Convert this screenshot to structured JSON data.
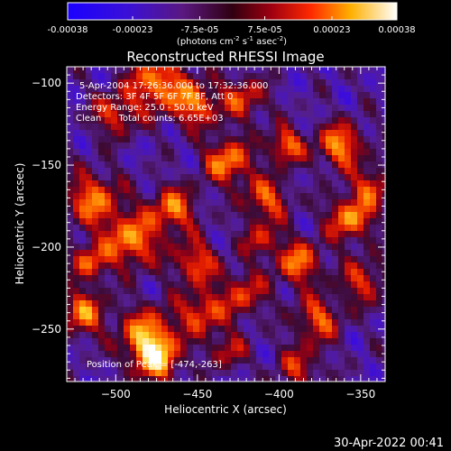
{
  "footer_timestamp": "30-Apr-2022 00:41",
  "chart_data": {
    "type": "heatmap",
    "title": "Reconstructed RHESSI Image",
    "xlabel": "Heliocentric X (arcsec)",
    "ylabel": "Heliocentric Y (arcsec)",
    "xlim": [
      -530,
      -335
    ],
    "ylim": [
      -282,
      -90
    ],
    "x_ticks": [
      -500,
      -450,
      -400,
      -350
    ],
    "y_ticks": [
      -100,
      -150,
      -200,
      -250
    ],
    "colorbar": {
      "min": -0.00038,
      "max": 0.00038,
      "ticks": [
        {
          "value": -0.00038,
          "label": "-0.00038"
        },
        {
          "value": -0.00023,
          "label": "-0.00023"
        },
        {
          "value": -7.5e-05,
          "label": "-7.5e-05"
        },
        {
          "value": 7.5e-05,
          "label": "7.5e-05"
        },
        {
          "value": 0.00023,
          "label": "0.00023"
        },
        {
          "value": 0.00038,
          "label": "0.00038"
        }
      ],
      "unit_prefix": "(photons cm",
      "unit_exp1": "-2",
      "unit_mid1": " s",
      "unit_exp2": "-1",
      "unit_mid2": " asec",
      "unit_exp3": "-2",
      "unit_suffix": ")"
    },
    "annotations": [
      "5-Apr-2004 17:26:36.000 to 17:32:36.000",
      "Detectors: 3F 4F 5F 6F 7F 8F, Att 0",
      "Energy Range: 25.0 - 50.0 keV",
      "Clean      Total counts: 6.65E+03"
    ],
    "peak_label": "Position of Peak = [-474,-263]",
    "peak": {
      "x": -474,
      "y": -263
    },
    "colors": {
      "low": "#2000ff",
      "mid": "#501878",
      "high": "#ffffff"
    }
  }
}
